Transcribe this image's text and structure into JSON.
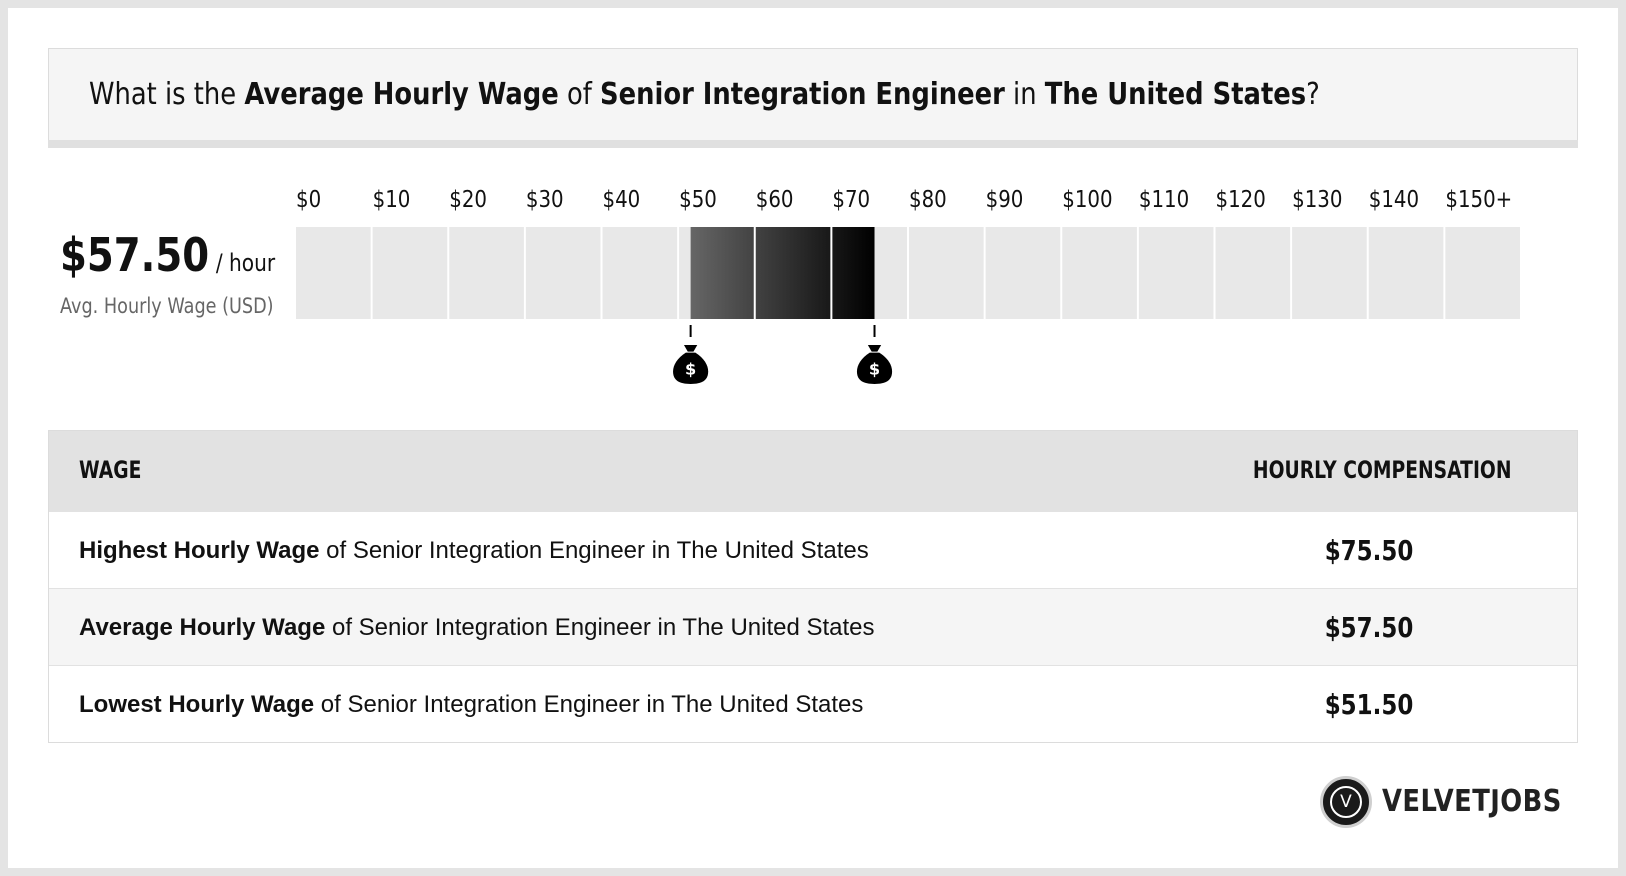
{
  "title": {
    "prefix": "What is the ",
    "metric": "Average Hourly Wage",
    "of": " of ",
    "job": "Senior Integration Engineer",
    "in": " in ",
    "location": "The United States",
    "suffix": "?"
  },
  "average": {
    "value": "$57.50",
    "unit": "/ hour",
    "label": "Avg. Hourly Wage (USD)"
  },
  "chart_data": {
    "type": "range-bar",
    "x_tick_labels": [
      "$0",
      "$10",
      "$20",
      "$30",
      "$40",
      "$50",
      "$60",
      "$70",
      "$80",
      "$90",
      "$100",
      "$110",
      "$120",
      "$130",
      "$140",
      "$150+"
    ],
    "xlim": [
      0,
      160
    ],
    "tick_step": 10,
    "range": {
      "low": 51.5,
      "high": 75.5
    },
    "markers": [
      51.5,
      75.5
    ],
    "marker_symbol": "$",
    "colors": {
      "track": "#e8e8e8",
      "range_start": "#666666",
      "range_end": "#000000"
    }
  },
  "table": {
    "headers": {
      "wage": "WAGE",
      "compensation": "HOURLY COMPENSATION"
    },
    "rows": [
      {
        "bold": "Highest Hourly Wage",
        "rest": " of Senior Integration Engineer in The United States",
        "value": "$75.50"
      },
      {
        "bold": "Average Hourly Wage",
        "rest": " of Senior Integration Engineer in The United States",
        "value": "$57.50"
      },
      {
        "bold": "Lowest Hourly Wage",
        "rest": " of Senior Integration Engineer in The United States",
        "value": "$51.50"
      }
    ]
  },
  "logo": {
    "mark": "V",
    "text": "VELVETJOBS"
  }
}
